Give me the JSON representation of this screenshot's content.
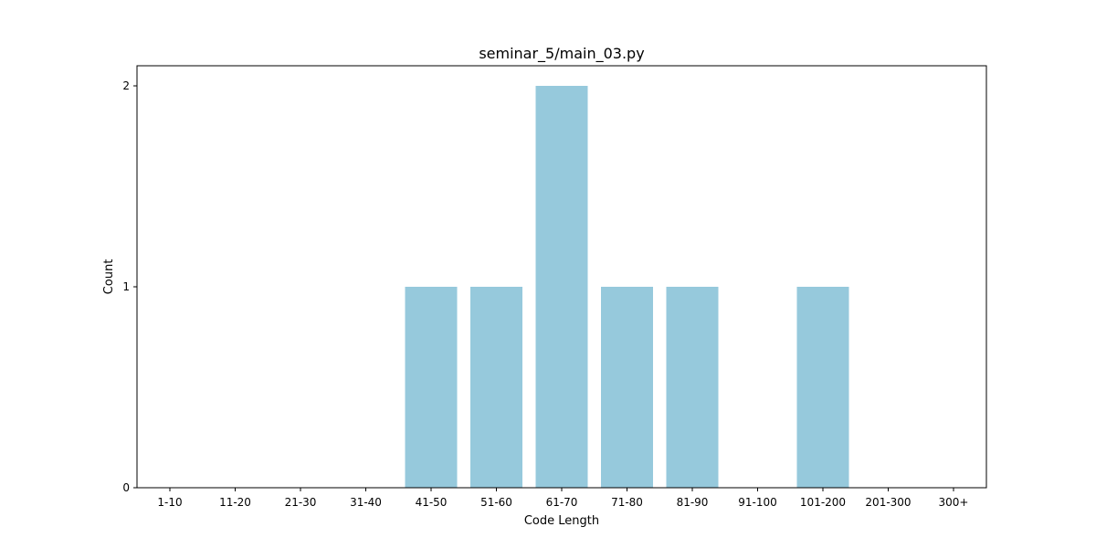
{
  "chart_data": {
    "type": "bar",
    "title": "seminar_5/main_03.py",
    "xlabel": "Code Length",
    "ylabel": "Count",
    "categories": [
      "1-10",
      "11-20",
      "21-30",
      "31-40",
      "41-50",
      "51-60",
      "61-70",
      "71-80",
      "81-90",
      "91-100",
      "101-200",
      "201-300",
      "300+"
    ],
    "values": [
      0,
      0,
      0,
      0,
      1,
      1,
      2,
      1,
      1,
      0,
      1,
      0,
      0
    ],
    "yticks": [
      "0",
      "1",
      "2"
    ],
    "ylim": [
      0,
      2.1
    ],
    "grid": false,
    "bar_color": "#96c9dc"
  }
}
